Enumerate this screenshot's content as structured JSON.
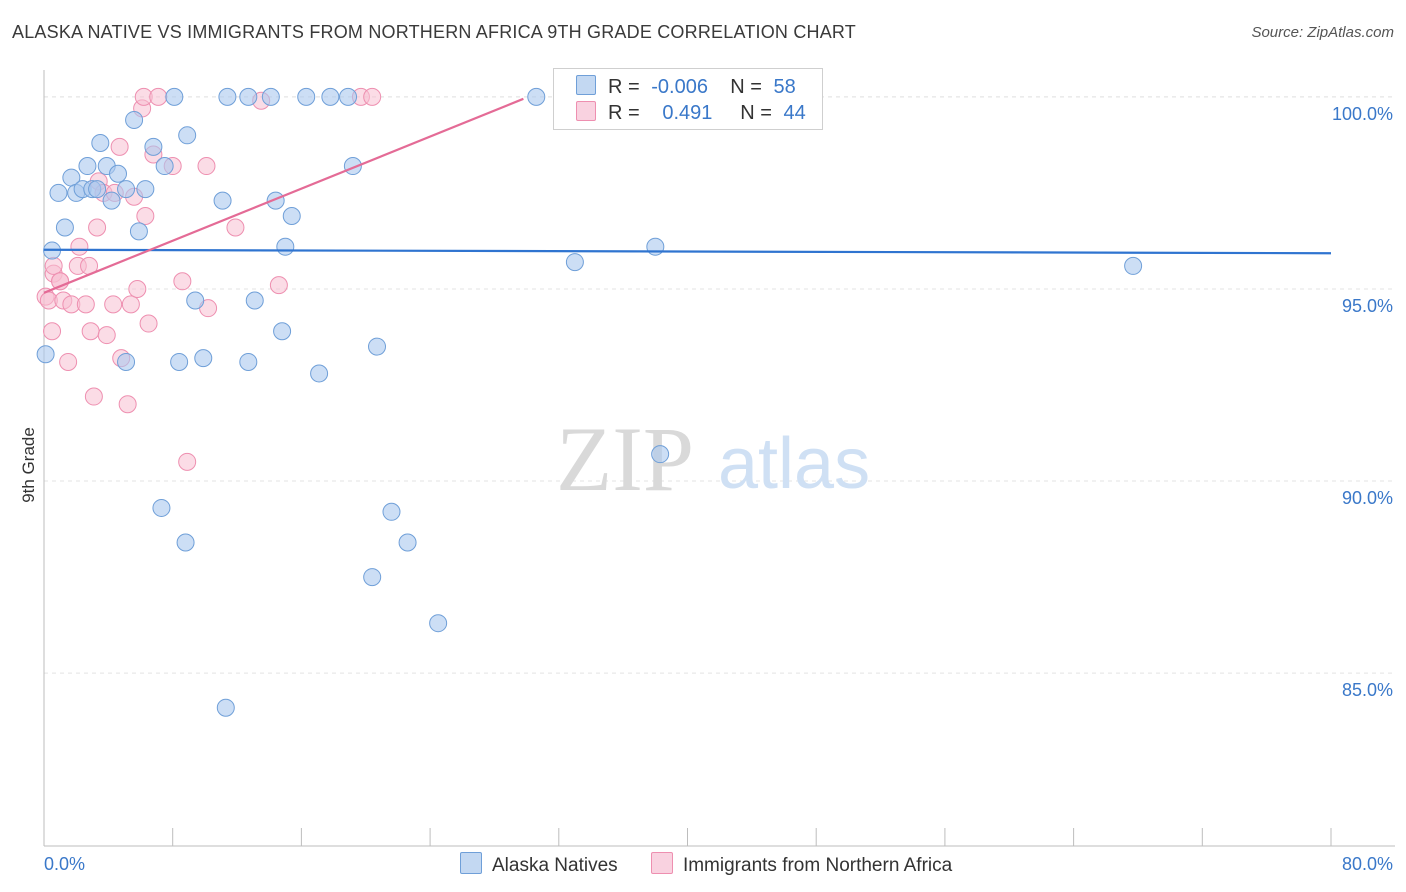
{
  "header": {
    "title": "ALASKA NATIVE VS IMMIGRANTS FROM NORTHERN AFRICA 9TH GRADE CORRELATION CHART",
    "source": "Source: ZipAtlas.com"
  },
  "legend": {
    "row1": {
      "r_label": "R =",
      "r_value": "-0.006",
      "n_label": "N =",
      "n_value": "58"
    },
    "row2": {
      "r_label": "R =",
      "r_value": "0.491",
      "n_label": "N =",
      "n_value": "44"
    }
  },
  "watermark": {
    "zip": "ZIP",
    "atlas": "atlas"
  },
  "chart_data": {
    "type": "scatter",
    "title": "ALASKA NATIVE VS IMMIGRANTS FROM NORTHERN AFRICA 9TH GRADE CORRELATION CHART",
    "xlabel": "",
    "ylabel": "9th Grade",
    "xlim": [
      0,
      80
    ],
    "ylim": [
      80.5,
      100.7
    ],
    "x_tick_labels": [
      "0.0%",
      "80.0%"
    ],
    "y_ticks": [
      85,
      90,
      95,
      100
    ],
    "y_tick_labels": [
      "85.0%",
      "90.0%",
      "95.0%",
      "100.0%"
    ],
    "grid": true,
    "legend_position": "top-center",
    "colors": {
      "blue_fill": "#aac8ee",
      "blue_stroke": "#6f9fd8",
      "blue_line": "#2f74d0",
      "pink_fill": "#f7bfd2",
      "pink_stroke": "#ee8fb0",
      "pink_line": "#e46b96",
      "axis_text": "#3a78c9",
      "grid": "#e3e3e3"
    },
    "series": [
      {
        "name": "Alaska Natives",
        "r": -0.006,
        "n": 58,
        "trend": {
          "x": [
            0,
            80
          ],
          "y": [
            96.02,
            95.93
          ]
        },
        "points": [
          [
            0.1,
            93.3
          ],
          [
            0.5,
            96.0
          ],
          [
            0.9,
            97.5
          ],
          [
            1.3,
            96.6
          ],
          [
            1.7,
            97.9
          ],
          [
            2.0,
            97.5
          ],
          [
            2.4,
            97.6
          ],
          [
            2.7,
            98.2
          ],
          [
            3.0,
            97.6
          ],
          [
            3.3,
            97.6
          ],
          [
            3.5,
            98.8
          ],
          [
            3.9,
            98.2
          ],
          [
            4.2,
            97.3
          ],
          [
            4.6,
            98.0
          ],
          [
            5.1,
            97.6
          ],
          [
            5.6,
            99.4
          ],
          [
            5.9,
            96.5
          ],
          [
            6.3,
            97.6
          ],
          [
            6.8,
            98.7
          ],
          [
            7.5,
            98.2
          ],
          [
            8.1,
            100.0
          ],
          [
            8.4,
            93.1
          ],
          [
            8.9,
            99.0
          ],
          [
            9.4,
            94.7
          ],
          [
            9.9,
            93.2
          ],
          [
            11.1,
            97.3
          ],
          [
            11.4,
            100.0
          ],
          [
            12.7,
            93.1
          ],
          [
            13.1,
            94.7
          ],
          [
            12.7,
            100.0
          ],
          [
            14.1,
            100.0
          ],
          [
            14.4,
            97.3
          ],
          [
            14.8,
            93.9
          ],
          [
            15.0,
            96.1
          ],
          [
            15.4,
            96.9
          ],
          [
            16.3,
            100.0
          ],
          [
            17.1,
            92.8
          ],
          [
            17.8,
            100.0
          ],
          [
            18.9,
            100.0
          ],
          [
            19.2,
            98.2
          ],
          [
            20.7,
            93.5
          ],
          [
            5.1,
            93.1
          ],
          [
            7.3,
            89.3
          ],
          [
            8.8,
            88.4
          ],
          [
            21.6,
            89.2
          ],
          [
            22.6,
            88.4
          ],
          [
            20.4,
            87.5
          ],
          [
            24.5,
            86.3
          ],
          [
            11.3,
            84.1
          ],
          [
            30.6,
            100.0
          ],
          [
            33.0,
            95.7
          ],
          [
            38.0,
            96.1
          ],
          [
            38.3,
            90.7
          ],
          [
            41.5,
            100.0
          ],
          [
            43.5,
            100.0
          ],
          [
            67.7,
            95.6
          ],
          [
            35.0,
            100.0
          ],
          [
            37.0,
            100.0
          ]
        ]
      },
      {
        "name": "Immigrants from Northern Africa",
        "r": 0.491,
        "n": 44,
        "trend": {
          "x": [
            0,
            29.8
          ],
          "y": [
            94.9,
            99.95
          ]
        },
        "points": [
          [
            0.1,
            94.8
          ],
          [
            0.3,
            94.7
          ],
          [
            0.5,
            93.9
          ],
          [
            0.6,
            95.4
          ],
          [
            1.0,
            95.2
          ],
          [
            1.2,
            94.7
          ],
          [
            1.5,
            93.1
          ],
          [
            1.7,
            94.6
          ],
          [
            2.1,
            95.6
          ],
          [
            2.2,
            96.1
          ],
          [
            2.6,
            94.6
          ],
          [
            2.8,
            95.6
          ],
          [
            2.9,
            93.9
          ],
          [
            3.1,
            92.2
          ],
          [
            3.3,
            96.6
          ],
          [
            3.4,
            97.8
          ],
          [
            3.7,
            97.5
          ],
          [
            3.9,
            93.8
          ],
          [
            4.3,
            94.6
          ],
          [
            4.7,
            98.7
          ],
          [
            4.8,
            93.2
          ],
          [
            5.2,
            92.0
          ],
          [
            5.4,
            94.6
          ],
          [
            5.6,
            97.4
          ],
          [
            5.8,
            95.0
          ],
          [
            6.1,
            99.7
          ],
          [
            6.2,
            100.0
          ],
          [
            6.5,
            94.1
          ],
          [
            6.8,
            98.5
          ],
          [
            7.1,
            100.0
          ],
          [
            8.0,
            98.2
          ],
          [
            8.6,
            95.2
          ],
          [
            8.9,
            90.5
          ],
          [
            10.2,
            94.5
          ],
          [
            10.1,
            98.2
          ],
          [
            11.9,
            96.6
          ],
          [
            13.5,
            99.9
          ],
          [
            14.6,
            95.1
          ],
          [
            19.7,
            100.0
          ],
          [
            20.4,
            100.0
          ],
          [
            0.6,
            95.6
          ],
          [
            1.0,
            95.2
          ],
          [
            6.3,
            96.9
          ],
          [
            4.4,
            97.5
          ]
        ]
      }
    ]
  },
  "bottom_legend": {
    "series1": "Alaska Natives",
    "series2": "Immigrants from Northern Africa"
  }
}
